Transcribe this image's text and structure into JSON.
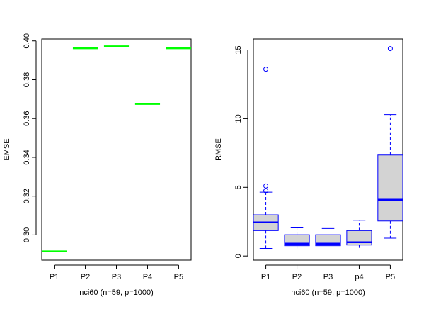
{
  "colors": {
    "median_line_left": "#00ff00",
    "box_stroke": "#0000ff",
    "box_fill": "#d3d3d3",
    "axis": "#000000"
  },
  "chart_data": [
    {
      "type": "line",
      "title": "",
      "xlabel": "nci60 (n=59, p=1000)",
      "ylabel": "EMSE",
      "categories": [
        "P1",
        "P2",
        "P3",
        "P4",
        "P5"
      ],
      "values": [
        0.2915,
        0.3962,
        0.3972,
        0.3675,
        0.3962
      ],
      "ylim": [
        0.287,
        0.401
      ],
      "yticks": [
        0.3,
        0.32,
        0.34,
        0.36,
        0.38,
        0.4
      ],
      "ytick_labels": [
        "0.30",
        "0.32",
        "0.34",
        "0.36",
        "0.38",
        "0.40"
      ],
      "grid": false,
      "legend": "none"
    },
    {
      "type": "box",
      "title": "",
      "xlabel": "nci60 (n=59, p=1000)",
      "ylabel": "RMSE",
      "categories": [
        "P1",
        "P2",
        "P3",
        "p4",
        "P5"
      ],
      "boxes": [
        {
          "min": 0.55,
          "q1": 1.85,
          "median": 2.45,
          "q3": 3.0,
          "max": 4.65,
          "outliers": [
            13.6,
            5.1,
            4.75
          ]
        },
        {
          "min": 0.5,
          "q1": 0.75,
          "median": 0.9,
          "q3": 1.55,
          "max": 2.05,
          "outliers": []
        },
        {
          "min": 0.5,
          "q1": 0.75,
          "median": 0.9,
          "q3": 1.55,
          "max": 2.0,
          "outliers": []
        },
        {
          "min": 0.5,
          "q1": 0.8,
          "median": 1.0,
          "q3": 1.85,
          "max": 2.6,
          "outliers": []
        },
        {
          "min": 1.3,
          "q1": 2.55,
          "median": 4.1,
          "q3": 7.35,
          "max": 10.3,
          "outliers": [
            15.1
          ]
        }
      ],
      "ylim": [
        -0.3,
        15.8
      ],
      "yticks": [
        0,
        5,
        10,
        15
      ],
      "ytick_labels": [
        "0",
        "5",
        "10",
        "15"
      ],
      "grid": false,
      "legend": "none"
    }
  ]
}
